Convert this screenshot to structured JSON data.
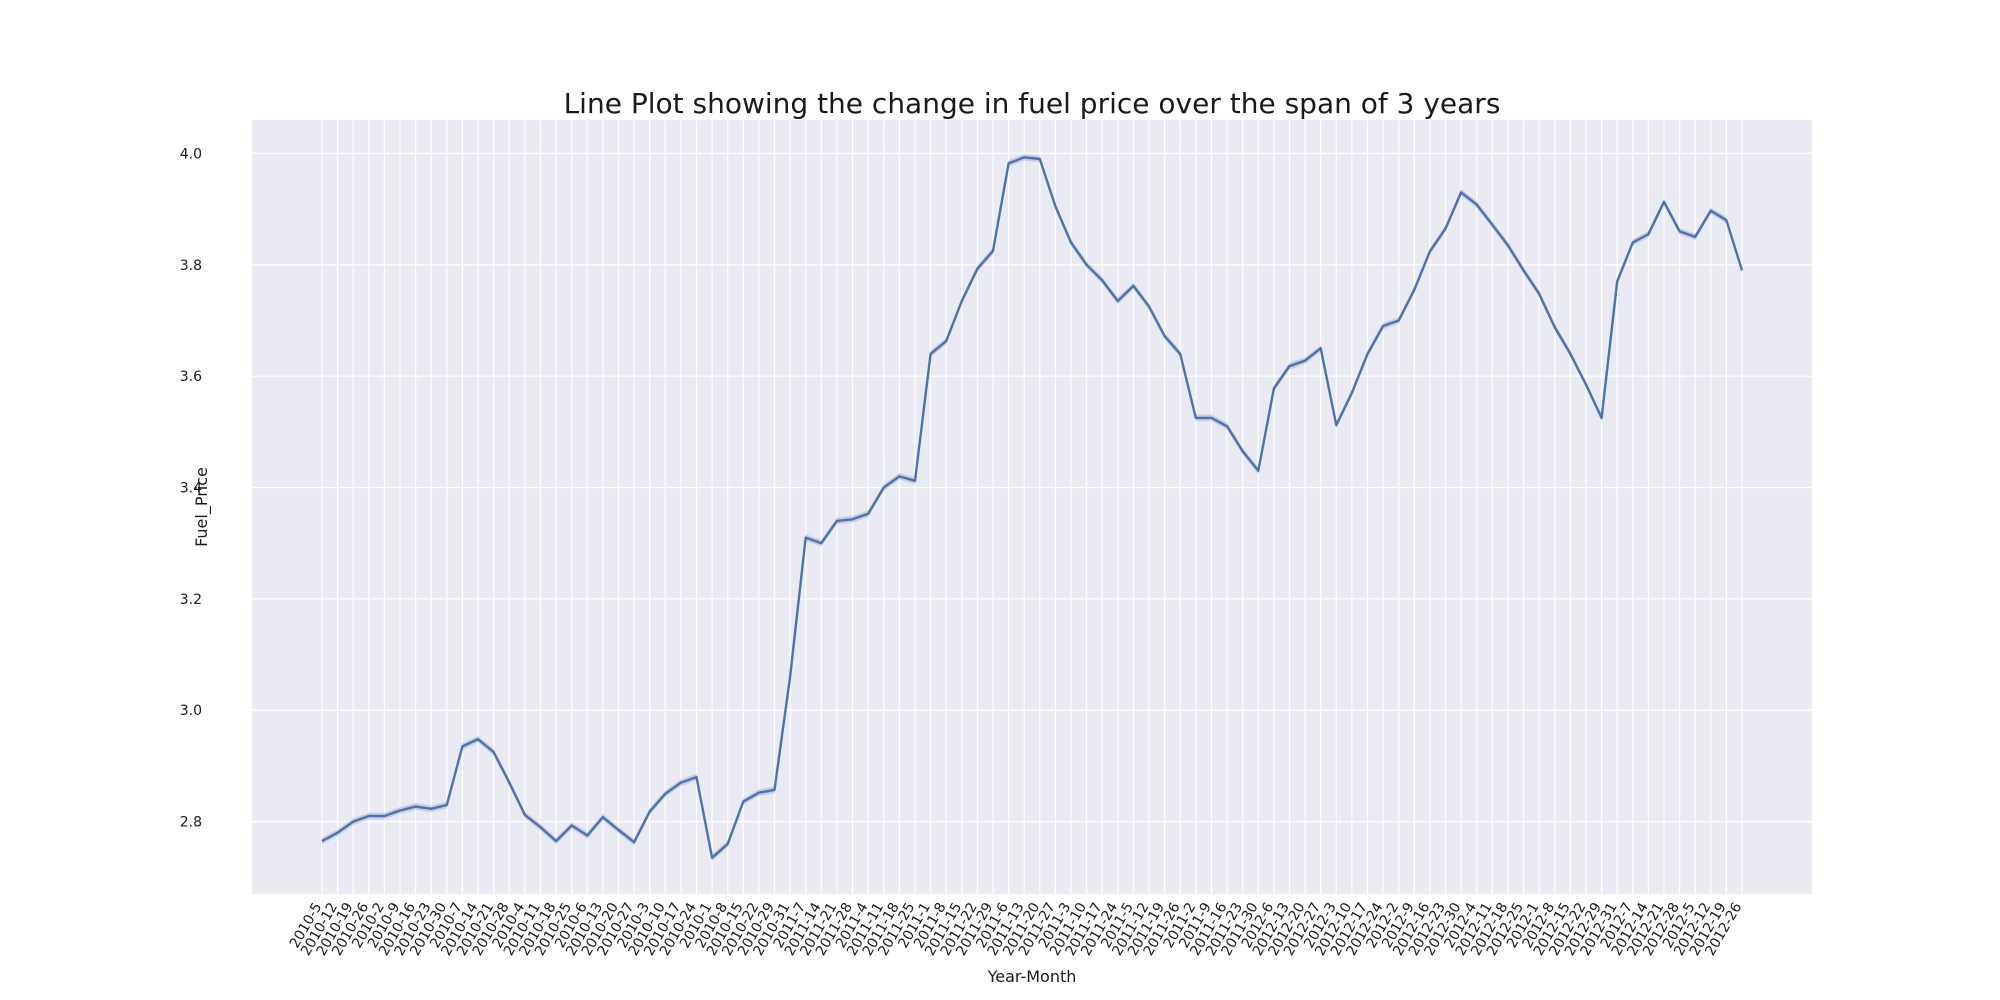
{
  "chart_data": {
    "type": "line",
    "title": "Line Plot showing the change in fuel price over the span of 3 years",
    "xlabel": "Year-Month",
    "ylabel": "Fuel_Price",
    "ylim": [
      2.67,
      4.06
    ],
    "yticks": [
      2.8,
      3.0,
      3.2,
      3.4,
      3.6,
      3.8,
      4.0
    ],
    "grid": true,
    "legend": "none",
    "colors": {
      "line": "#4c72b0",
      "band": "#aab7d6",
      "background": "#eaeaf2",
      "grid": "#ffffff"
    },
    "x": [
      "2010-5",
      "2010-12",
      "2010-19",
      "2010-26",
      "2010-2",
      "2010-9",
      "2010-16",
      "2010-23",
      "2010-30",
      "2010-7",
      "2010-14",
      "2010-21",
      "2010-28",
      "2010-4",
      "2010-11",
      "2010-18",
      "2010-25",
      "2010-6",
      "2010-13",
      "2010-20",
      "2010-27",
      "2010-3",
      "2010-10",
      "2010-17",
      "2010-24",
      "2010-1",
      "2010-8",
      "2010-15",
      "2010-22",
      "2010-29",
      "2010-31",
      "2011-7",
      "2011-14",
      "2011-21",
      "2011-28",
      "2011-4",
      "2011-11",
      "2011-18",
      "2011-25",
      "2011-1",
      "2011-8",
      "2011-15",
      "2011-22",
      "2011-29",
      "2011-6",
      "2011-13",
      "2011-20",
      "2011-27",
      "2011-3",
      "2011-10",
      "2011-17",
      "2011-24",
      "2011-5",
      "2011-12",
      "2011-19",
      "2011-26",
      "2011-2",
      "2011-9",
      "2011-16",
      "2011-23",
      "2011-30",
      "2012-6",
      "2012-13",
      "2012-20",
      "2012-27",
      "2012-3",
      "2012-10",
      "2012-17",
      "2012-24",
      "2012-2",
      "2012-9",
      "2012-16",
      "2012-23",
      "2012-30",
      "2012-4",
      "2012-11",
      "2012-18",
      "2012-25",
      "2012-1",
      "2012-8",
      "2012-15",
      "2012-22",
      "2012-29",
      "2012-31",
      "2012-7",
      "2012-14",
      "2012-21",
      "2012-28",
      "2012-5",
      "2012-12",
      "2012-19",
      "2012-26"
    ],
    "series": [
      {
        "values": [
          2.765,
          2.78,
          2.8,
          2.81,
          2.81,
          2.82,
          2.827,
          2.823,
          2.83,
          2.935,
          2.948,
          2.925,
          2.87,
          2.812,
          2.79,
          2.765,
          2.793,
          2.775,
          2.808,
          2.785,
          2.763,
          2.818,
          2.85,
          2.87,
          2.88,
          2.735,
          2.76,
          2.836,
          2.852,
          2.857,
          3.06,
          3.31,
          3.3,
          3.34,
          3.343,
          3.353,
          3.4,
          3.42,
          3.412,
          3.64,
          3.663,
          3.735,
          3.793,
          3.825,
          3.982,
          3.993,
          3.99,
          3.905,
          3.84,
          3.8,
          3.772,
          3.735,
          3.762,
          3.725,
          3.672,
          3.64,
          3.525,
          3.525,
          3.51,
          3.465,
          3.43,
          3.578,
          3.618,
          3.628,
          3.65,
          3.512,
          3.57,
          3.64,
          3.69,
          3.7,
          3.755,
          3.824,
          3.865,
          3.93,
          3.908,
          3.872,
          3.835,
          3.79,
          3.748,
          3.688,
          3.64,
          3.585,
          3.525,
          3.77,
          3.84,
          3.855,
          3.913,
          3.86,
          3.85,
          3.897,
          3.88,
          3.79
        ]
      }
    ]
  }
}
